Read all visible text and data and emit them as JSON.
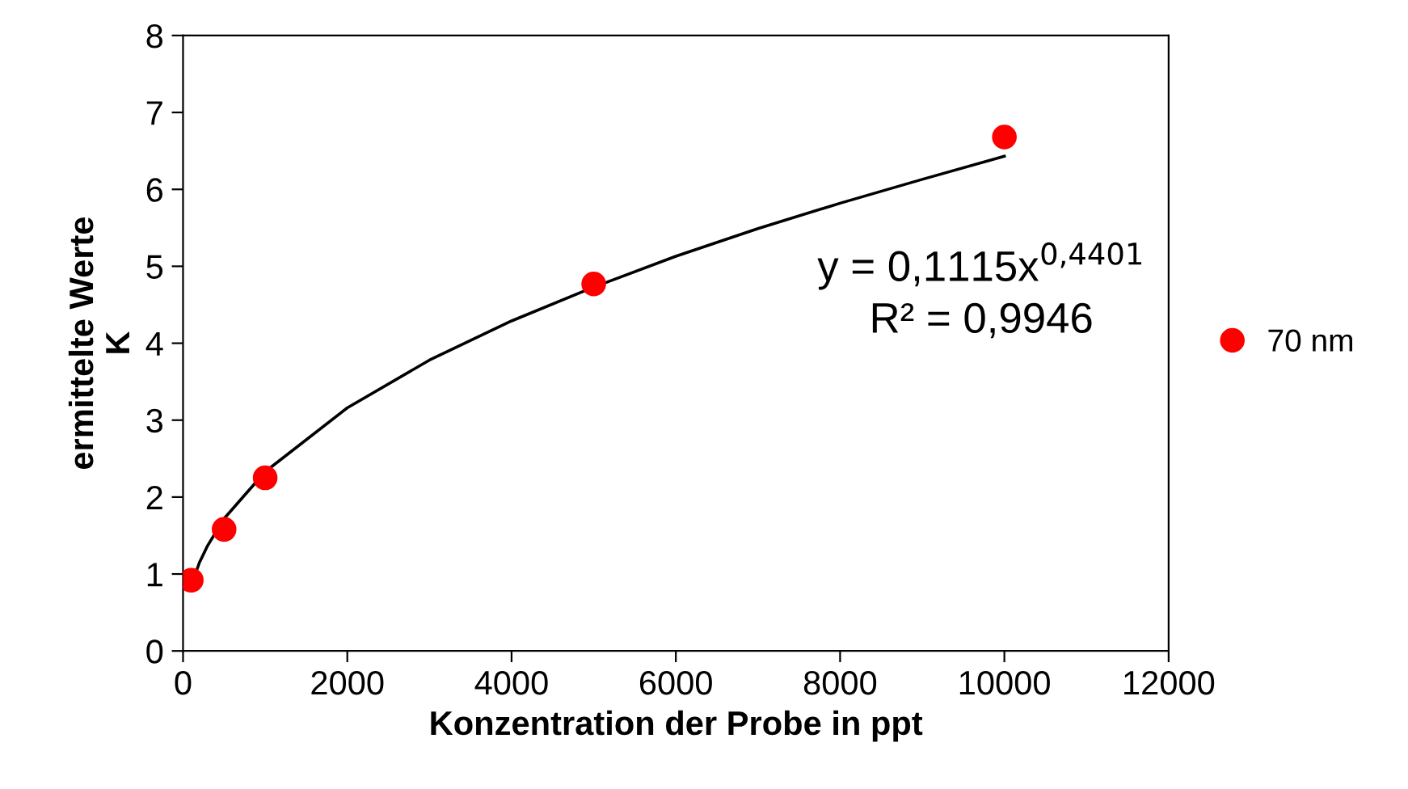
{
  "chart_data": {
    "type": "scatter",
    "xlabel": "Konzentration der Probe in ppt",
    "ylabel": "ermittelte Werte\nK",
    "series": [
      {
        "name": "70 nm",
        "color": "#ff0000",
        "marker": "circle",
        "x": [
          100,
          500,
          1000,
          5000,
          10000
        ],
        "values": [
          0.92,
          1.58,
          2.25,
          4.77,
          6.68
        ]
      },
      {
        "color": "#000000",
        "type": "line",
        "marker": "none",
        "line_style": "solid",
        "x": [
          100,
          200,
          300,
          500,
          1000,
          2000,
          3000,
          4000,
          5000,
          6000,
          7000,
          8000,
          9000,
          10000
        ],
        "values": [
          0.85,
          1.15,
          1.37,
          1.72,
          2.33,
          3.16,
          3.78,
          4.29,
          4.73,
          5.13,
          5.49,
          5.82,
          6.13,
          6.43
        ]
      }
    ],
    "annotations": [
      "y = 0,1115x$^{0,4401}$",
      "R² = 0,9946"
    ],
    "xlim": [
      0,
      12000
    ],
    "xticks": [
      0,
      2000,
      4000,
      6000,
      8000,
      10000,
      12000
    ],
    "ylim": [
      0,
      8
    ],
    "yticks": [
      0,
      1,
      2,
      3,
      4,
      5,
      6,
      7,
      8
    ],
    "grid": false,
    "legend": "right"
  }
}
